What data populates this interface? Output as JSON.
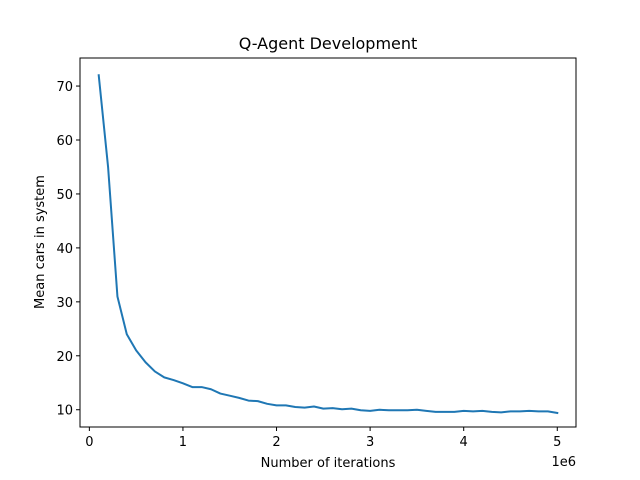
{
  "chart_data": {
    "type": "line",
    "title": "Q-Agent Development",
    "xlabel": "Number of iterations",
    "ylabel": "Mean cars in system",
    "x_multiplier_label": "1e6",
    "xlim": [
      -0.1,
      5.2
    ],
    "ylim": [
      6.8,
      75.2
    ],
    "xticks": [
      0,
      1,
      2,
      3,
      4,
      5
    ],
    "yticks": [
      10,
      20,
      30,
      40,
      50,
      60,
      70
    ],
    "grid": false,
    "line_color": "#1f77b4",
    "series": [
      {
        "x": [
          0.1,
          0.2,
          0.3,
          0.4,
          0.5,
          0.6,
          0.7,
          0.8,
          0.9,
          1.0,
          1.1,
          1.2,
          1.3,
          1.4,
          1.5,
          1.6,
          1.7,
          1.8,
          1.9,
          2.0,
          2.1,
          2.2,
          2.3,
          2.4,
          2.5,
          2.6,
          2.7,
          2.8,
          2.9,
          3.0,
          3.1,
          3.2,
          3.3,
          3.4,
          3.5,
          3.6,
          3.7,
          3.8,
          3.9,
          4.0,
          4.1,
          4.2,
          4.3,
          4.4,
          4.5,
          4.6,
          4.7,
          4.8,
          4.9,
          5.0
        ],
        "values": [
          72.0,
          55.0,
          31.0,
          24.0,
          21.0,
          18.8,
          17.1,
          16.0,
          15.5,
          14.9,
          14.2,
          14.2,
          13.8,
          13.0,
          12.6,
          12.2,
          11.7,
          11.6,
          11.1,
          10.8,
          10.8,
          10.5,
          10.4,
          10.6,
          10.2,
          10.3,
          10.1,
          10.2,
          9.9,
          9.8,
          10.0,
          9.9,
          9.9,
          9.9,
          10.0,
          9.8,
          9.6,
          9.6,
          9.6,
          9.8,
          9.7,
          9.8,
          9.6,
          9.5,
          9.7,
          9.7,
          9.8,
          9.7,
          9.7,
          9.4
        ]
      }
    ]
  }
}
